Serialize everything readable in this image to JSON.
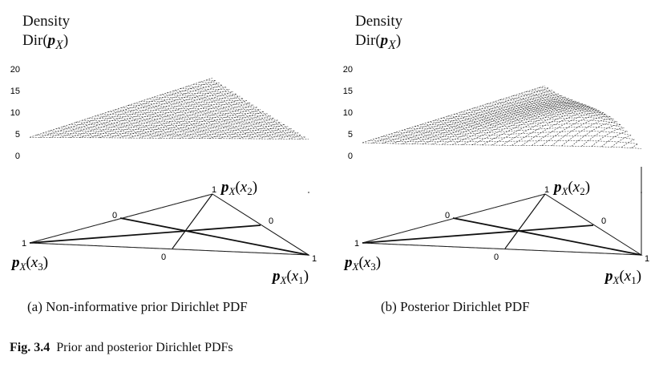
{
  "panels": [
    {
      "id": "a",
      "density_title": "Density",
      "density_func": "Dir",
      "density_arg": "p",
      "density_sub": "X",
      "z_ticks": [
        "20",
        "15",
        "10",
        "5",
        "0"
      ],
      "vertex_labels": {
        "x2": {
          "var": "p",
          "sub": "X",
          "arg": "x",
          "argsub": "2",
          "value": "1"
        },
        "x3": {
          "var": "p",
          "sub": "X",
          "arg": "x",
          "argsub": "3",
          "value": "1"
        },
        "x1": {
          "var": "p",
          "sub": "X",
          "arg": "x",
          "argsub": "1",
          "value": "1"
        }
      },
      "zero_labels": [
        "0",
        "0",
        "0"
      ],
      "caption": "(a)  Non-informative prior Dirichlet PDF"
    },
    {
      "id": "b",
      "density_title": "Density",
      "density_func": "Dir",
      "density_arg": "p",
      "density_sub": "X",
      "z_ticks": [
        "20",
        "15",
        "10",
        "5",
        "0"
      ],
      "vertex_labels": {
        "x2": {
          "var": "p",
          "sub": "X",
          "arg": "x",
          "argsub": "2",
          "value": "1"
        },
        "x3": {
          "var": "p",
          "sub": "X",
          "arg": "x",
          "argsub": "3",
          "value": "1"
        },
        "x1": {
          "var": "p",
          "sub": "X",
          "arg": "x",
          "argsub": "1",
          "value": "1"
        }
      },
      "zero_labels": [
        "0",
        "0",
        "0"
      ],
      "caption": "(b)  Posterior Dirichlet PDF"
    }
  ],
  "figure_caption": {
    "label": "Fig. 3.4",
    "text": "Prior and posterior Dirichlet PDFs"
  }
}
